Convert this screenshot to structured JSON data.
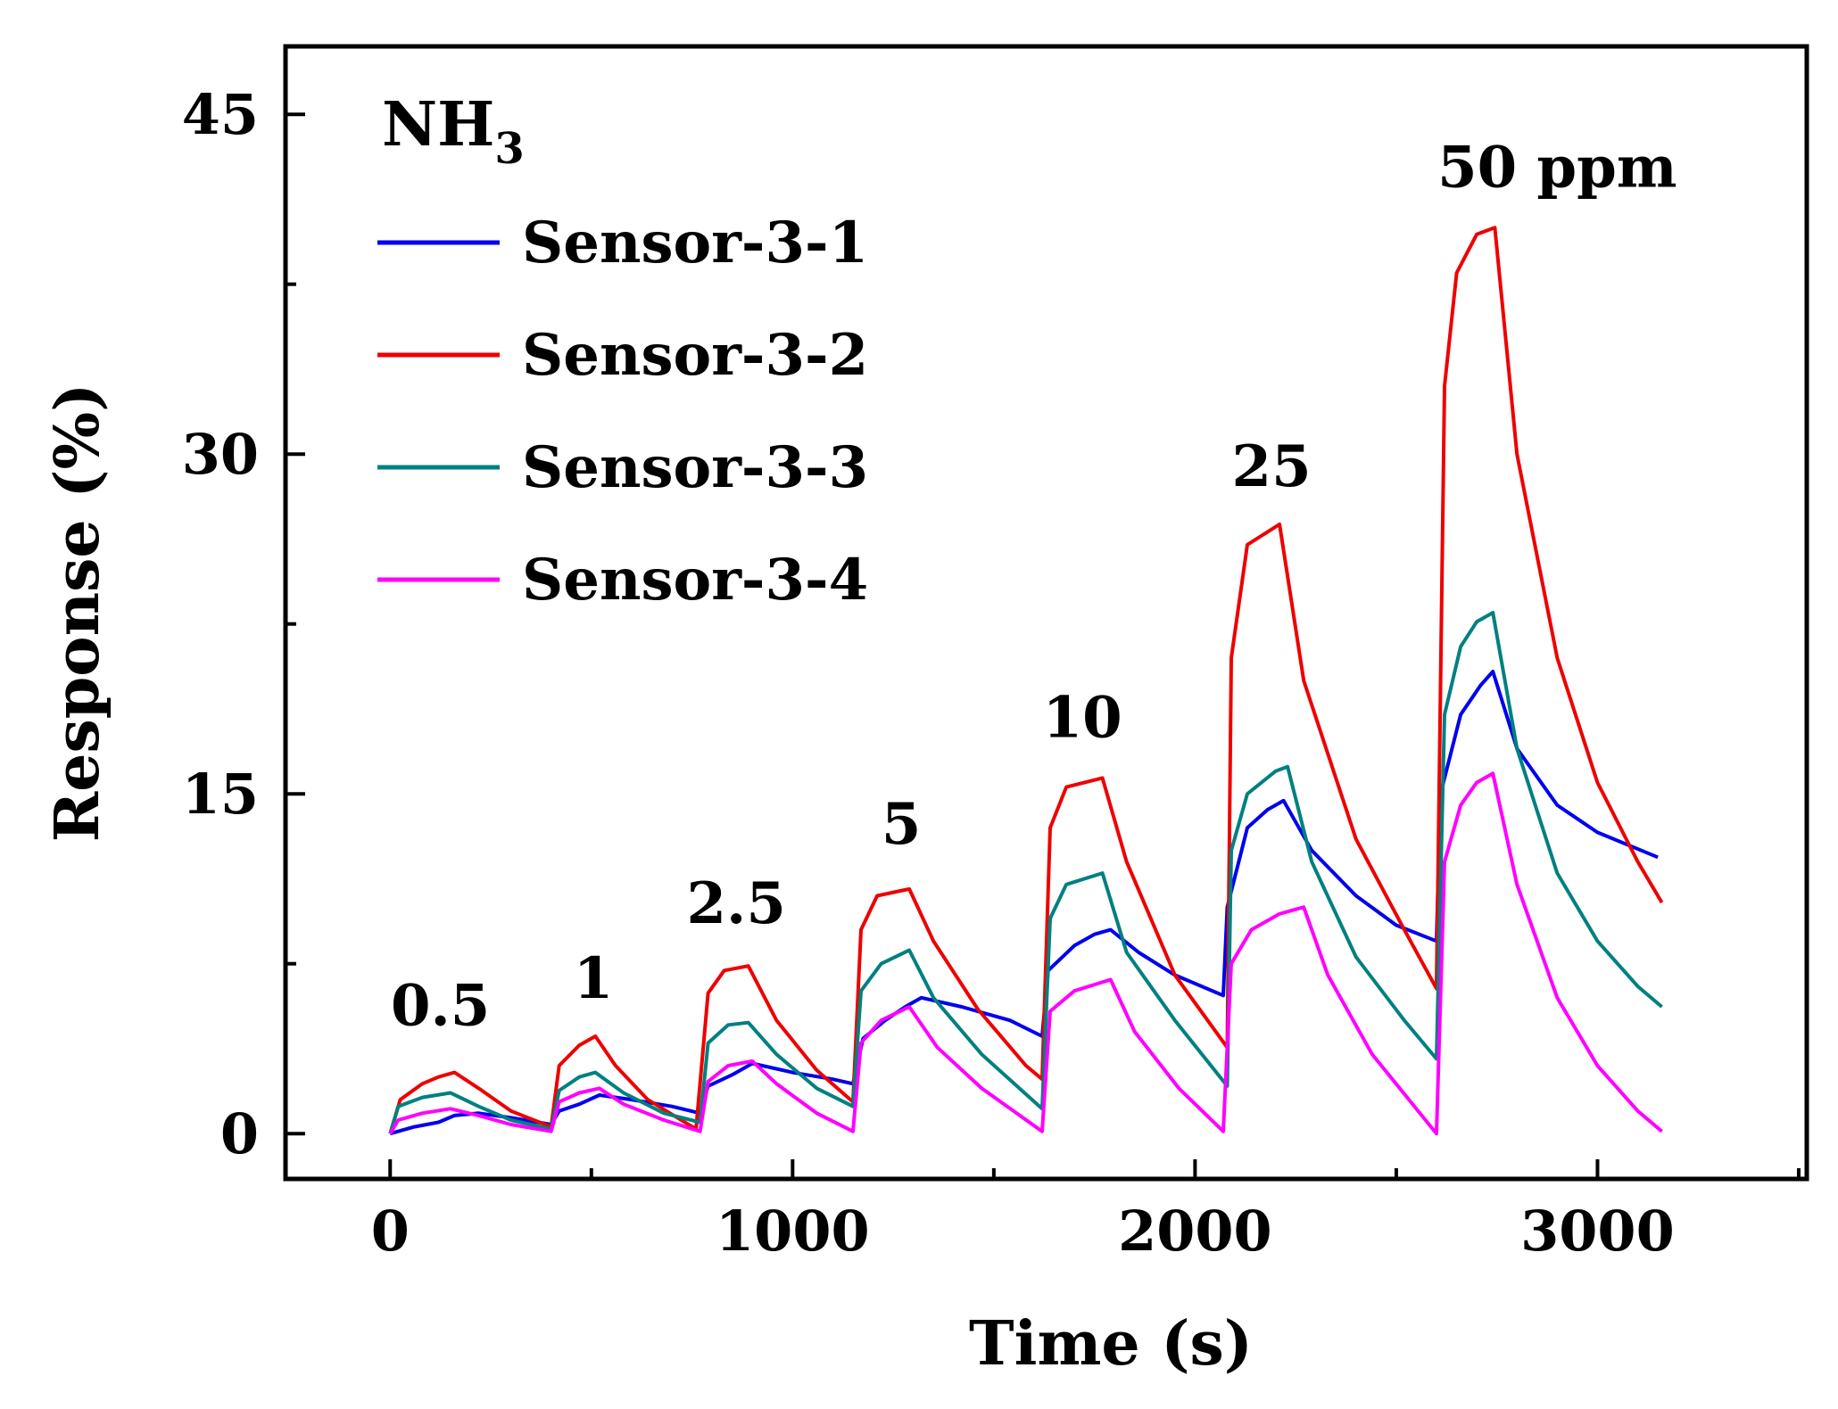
{
  "chart_data": {
    "type": "line",
    "xlabel": "Time (s)",
    "ylabel": "Response (%)",
    "xlim": [
      -260,
      3520
    ],
    "ylim": [
      -2,
      48
    ],
    "xticks": [
      0,
      1000,
      2000,
      3000
    ],
    "yticks": [
      0,
      15,
      30,
      45
    ],
    "xtick_labels": [
      "0",
      "1000",
      "2000",
      "3000"
    ],
    "ytick_labels": [
      "0",
      "15",
      "30",
      "45"
    ],
    "grid": false,
    "legend_position": "top-left",
    "gas_label": {
      "main": "NH",
      "sub": "3"
    },
    "annotations": [
      {
        "text": "0.5",
        "x": 125,
        "y": 4.8
      },
      {
        "text": "1",
        "x": 505,
        "y": 6.0
      },
      {
        "text": "2.5",
        "x": 860,
        "y": 9.3
      },
      {
        "text": "5",
        "x": 1270,
        "y": 12.8
      },
      {
        "text": "10",
        "x": 1720,
        "y": 17.5
      },
      {
        "text": "25",
        "x": 2190,
        "y": 28.6
      },
      {
        "text": "50 ppm",
        "x": 2900,
        "y": 41.8
      }
    ],
    "series": [
      {
        "name": "Sensor-3-1",
        "color": "#0000ee",
        "points": [
          [
            0,
            0
          ],
          [
            60,
            0.3
          ],
          [
            120,
            0.5
          ],
          [
            160,
            0.8
          ],
          [
            220,
            0.9
          ],
          [
            300,
            0.7
          ],
          [
            400,
            0.4
          ],
          [
            420,
            1.0
          ],
          [
            470,
            1.3
          ],
          [
            520,
            1.7
          ],
          [
            600,
            1.5
          ],
          [
            700,
            1.2
          ],
          [
            770,
            0.9
          ],
          [
            790,
            2.1
          ],
          [
            850,
            2.6
          ],
          [
            900,
            3.1
          ],
          [
            1000,
            2.7
          ],
          [
            1100,
            2.4
          ],
          [
            1150,
            2.2
          ],
          [
            1175,
            4.2
          ],
          [
            1230,
            5.0
          ],
          [
            1280,
            5.6
          ],
          [
            1320,
            6.0
          ],
          [
            1420,
            5.6
          ],
          [
            1540,
            5.0
          ],
          [
            1620,
            4.3
          ],
          [
            1635,
            7.2
          ],
          [
            1700,
            8.3
          ],
          [
            1750,
            8.8
          ],
          [
            1790,
            9.0
          ],
          [
            1860,
            8.0
          ],
          [
            1950,
            7.0
          ],
          [
            2070,
            6.1
          ],
          [
            2080,
            10.0
          ],
          [
            2130,
            13.5
          ],
          [
            2180,
            14.3
          ],
          [
            2220,
            14.7
          ],
          [
            2290,
            12.5
          ],
          [
            2400,
            10.5
          ],
          [
            2500,
            9.2
          ],
          [
            2600,
            8.5
          ],
          [
            2610,
            15.0
          ],
          [
            2660,
            18.5
          ],
          [
            2710,
            19.8
          ],
          [
            2740,
            20.4
          ],
          [
            2800,
            17.0
          ],
          [
            2900,
            14.5
          ],
          [
            3000,
            13.3
          ],
          [
            3150,
            12.2
          ]
        ]
      },
      {
        "name": "Sensor-3-2",
        "color": "#ee0000",
        "points": [
          [
            0,
            0
          ],
          [
            25,
            1.5
          ],
          [
            80,
            2.2
          ],
          [
            120,
            2.5
          ],
          [
            160,
            2.7
          ],
          [
            220,
            2.0
          ],
          [
            300,
            1.0
          ],
          [
            400,
            0.3
          ],
          [
            420,
            3.0
          ],
          [
            470,
            3.9
          ],
          [
            510,
            4.3
          ],
          [
            560,
            3.0
          ],
          [
            640,
            1.5
          ],
          [
            760,
            0.2
          ],
          [
            790,
            6.2
          ],
          [
            830,
            7.2
          ],
          [
            890,
            7.4
          ],
          [
            960,
            5.0
          ],
          [
            1060,
            2.8
          ],
          [
            1150,
            1.4
          ],
          [
            1170,
            9.0
          ],
          [
            1210,
            10.5
          ],
          [
            1290,
            10.8
          ],
          [
            1350,
            8.5
          ],
          [
            1460,
            5.5
          ],
          [
            1580,
            3.0
          ],
          [
            1620,
            2.4
          ],
          [
            1640,
            13.5
          ],
          [
            1680,
            15.3
          ],
          [
            1770,
            15.7
          ],
          [
            1830,
            12.0
          ],
          [
            1950,
            7.0
          ],
          [
            2080,
            3.8
          ],
          [
            2090,
            21.0
          ],
          [
            2130,
            26.0
          ],
          [
            2210,
            26.9
          ],
          [
            2270,
            20.0
          ],
          [
            2400,
            13.0
          ],
          [
            2520,
            9.0
          ],
          [
            2600,
            6.4
          ],
          [
            2620,
            33.0
          ],
          [
            2650,
            38.0
          ],
          [
            2700,
            39.7
          ],
          [
            2745,
            40.0
          ],
          [
            2800,
            30.0
          ],
          [
            2900,
            21.0
          ],
          [
            3000,
            15.5
          ],
          [
            3100,
            12.0
          ],
          [
            3160,
            10.2
          ]
        ]
      },
      {
        "name": "Sensor-3-3",
        "color": "#008080",
        "points": [
          [
            0,
            0
          ],
          [
            20,
            1.2
          ],
          [
            80,
            1.6
          ],
          [
            150,
            1.8
          ],
          [
            220,
            1.2
          ],
          [
            300,
            0.6
          ],
          [
            400,
            0.2
          ],
          [
            420,
            1.9
          ],
          [
            470,
            2.5
          ],
          [
            510,
            2.7
          ],
          [
            580,
            1.8
          ],
          [
            680,
            0.9
          ],
          [
            770,
            0.5
          ],
          [
            790,
            4.0
          ],
          [
            840,
            4.8
          ],
          [
            890,
            4.9
          ],
          [
            960,
            3.5
          ],
          [
            1060,
            2.0
          ],
          [
            1150,
            1.2
          ],
          [
            1170,
            6.3
          ],
          [
            1220,
            7.5
          ],
          [
            1290,
            8.1
          ],
          [
            1350,
            6.0
          ],
          [
            1470,
            3.5
          ],
          [
            1620,
            1.1
          ],
          [
            1640,
            9.5
          ],
          [
            1680,
            11.0
          ],
          [
            1770,
            11.5
          ],
          [
            1830,
            8.0
          ],
          [
            1950,
            5.0
          ],
          [
            2080,
            2.1
          ],
          [
            2090,
            12.5
          ],
          [
            2130,
            15.0
          ],
          [
            2200,
            16.0
          ],
          [
            2230,
            16.2
          ],
          [
            2290,
            12.0
          ],
          [
            2400,
            7.8
          ],
          [
            2520,
            5.0
          ],
          [
            2600,
            3.3
          ],
          [
            2620,
            18.5
          ],
          [
            2660,
            21.5
          ],
          [
            2700,
            22.6
          ],
          [
            2740,
            23.0
          ],
          [
            2800,
            17.0
          ],
          [
            2900,
            11.5
          ],
          [
            3000,
            8.5
          ],
          [
            3100,
            6.5
          ],
          [
            3160,
            5.6
          ]
        ]
      },
      {
        "name": "Sensor-3-4",
        "color": "#ff00ff",
        "points": [
          [
            0,
            0
          ],
          [
            20,
            0.6
          ],
          [
            80,
            0.9
          ],
          [
            150,
            1.1
          ],
          [
            220,
            0.8
          ],
          [
            300,
            0.4
          ],
          [
            400,
            0.1
          ],
          [
            420,
            1.4
          ],
          [
            470,
            1.8
          ],
          [
            520,
            2.0
          ],
          [
            580,
            1.3
          ],
          [
            680,
            0.6
          ],
          [
            770,
            0.1
          ],
          [
            790,
            2.3
          ],
          [
            840,
            3.0
          ],
          [
            900,
            3.2
          ],
          [
            960,
            2.2
          ],
          [
            1060,
            0.9
          ],
          [
            1150,
            0.1
          ],
          [
            1170,
            4.0
          ],
          [
            1220,
            5.0
          ],
          [
            1290,
            5.6
          ],
          [
            1360,
            3.8
          ],
          [
            1470,
            2.0
          ],
          [
            1620,
            0.1
          ],
          [
            1640,
            5.4
          ],
          [
            1700,
            6.3
          ],
          [
            1790,
            6.8
          ],
          [
            1850,
            4.5
          ],
          [
            1960,
            2.0
          ],
          [
            2070,
            0.1
          ],
          [
            2090,
            7.5
          ],
          [
            2140,
            9.0
          ],
          [
            2210,
            9.7
          ],
          [
            2270,
            10.0
          ],
          [
            2330,
            7.0
          ],
          [
            2440,
            3.5
          ],
          [
            2600,
            0
          ],
          [
            2620,
            12.0
          ],
          [
            2660,
            14.5
          ],
          [
            2700,
            15.5
          ],
          [
            2740,
            15.9
          ],
          [
            2800,
            11.0
          ],
          [
            2900,
            6.0
          ],
          [
            3000,
            3.0
          ],
          [
            3100,
            1.0
          ],
          [
            3160,
            0.1
          ]
        ]
      }
    ]
  }
}
